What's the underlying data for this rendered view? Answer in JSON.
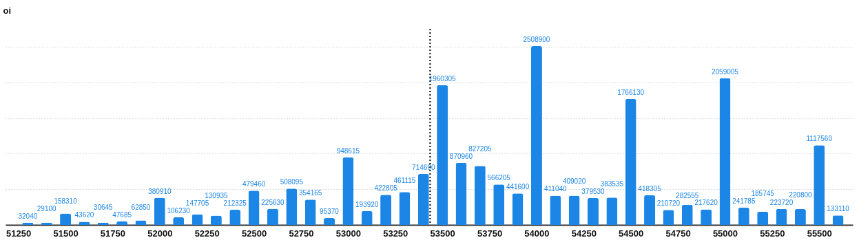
{
  "chart_data": {
    "type": "bar",
    "ylabel": "oi",
    "x": [
      51300,
      51400,
      51500,
      51600,
      51700,
      51800,
      51900,
      52000,
      52100,
      52200,
      52300,
      52400,
      52500,
      52600,
      52700,
      52800,
      52900,
      53000,
      53100,
      53200,
      53300,
      53400,
      53500,
      53600,
      53700,
      53800,
      53900,
      54000,
      54100,
      54200,
      54300,
      54400,
      54500,
      54600,
      54700,
      54800,
      54900,
      55000,
      55100,
      55200,
      55300,
      55400,
      55500,
      55600
    ],
    "series": [
      {
        "color": "#1c86e6",
        "values": [
          32040,
          29100,
          158310,
          43620,
          30645,
          47685,
          62850,
          380910,
          106230,
          147705,
          130935,
          212325,
          479460,
          225630,
          508095,
          354165,
          95370,
          948615,
          193920,
          422805,
          461115,
          714690,
          1960305,
          870960,
          827205,
          566205,
          441600,
          2508900,
          411040,
          409020,
          379530,
          383535,
          1766130,
          418305,
          210720,
          282555,
          217620,
          2059005,
          241785,
          185745,
          223720,
          220800,
          1117560,
          133110
        ]
      }
    ],
    "data_labels": true,
    "xlim": [
      51200,
      55660
    ],
    "xticks": [
      51250,
      51500,
      51750,
      52000,
      52250,
      52500,
      52750,
      53000,
      53250,
      53500,
      53750,
      54000,
      54250,
      54500,
      54750,
      55000,
      55250,
      55500
    ],
    "ylim": [
      0,
      2750000
    ],
    "yticks": [
      {
        "value": 500000,
        "label": null
      },
      {
        "value": 1000000,
        "label": null
      },
      {
        "value": 1500000,
        "label": null
      },
      {
        "value": 2000000,
        "label": null
      },
      {
        "value": 2500000,
        "label": null
      }
    ],
    "tick_labels": "x",
    "grid": "y",
    "ref_lines": [
      {
        "axis": "x",
        "value": 53435,
        "color": "#000000",
        "line_style": "dotted"
      }
    ]
  }
}
